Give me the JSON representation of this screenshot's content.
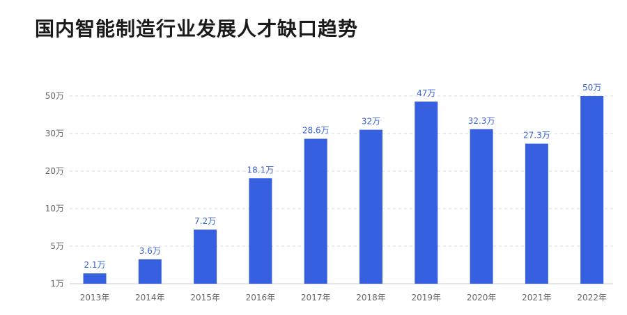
{
  "title": "国内智能制造行业发展人才缺口趋势",
  "chart_data": {
    "type": "bar",
    "title": "国内智能制造行业发展人才缺口趋势",
    "categories": [
      "2013年",
      "2014年",
      "2015年",
      "2016年",
      "2017年",
      "2018年",
      "2019年",
      "2020年",
      "2021年",
      "2022年"
    ],
    "values": [
      2.1,
      3.6,
      7.2,
      18.1,
      28.6,
      32,
      47,
      32.3,
      27.3,
      50
    ],
    "data_labels": [
      "2.1万",
      "3.6万",
      "7.2万",
      "18.1万",
      "28.6万",
      "32万",
      "47万",
      "32.3万",
      "27.3万",
      "50万"
    ],
    "y_ticks": [
      {
        "label": "1万",
        "position": 0
      },
      {
        "label": "5万",
        "position": 1
      },
      {
        "label": "10万",
        "position": 2
      },
      {
        "label": "20万",
        "position": 3
      },
      {
        "label": "30万",
        "position": 4
      },
      {
        "label": "50万",
        "position": 5
      }
    ],
    "xlabel": "",
    "ylabel": "",
    "grid": true,
    "legend": "none"
  },
  "colors": {
    "bar": "#3660E0",
    "data_label": "#3A63D8",
    "grid": "#D9D9D9",
    "axis": "#CCCCCC",
    "tick_text": "#666666"
  }
}
